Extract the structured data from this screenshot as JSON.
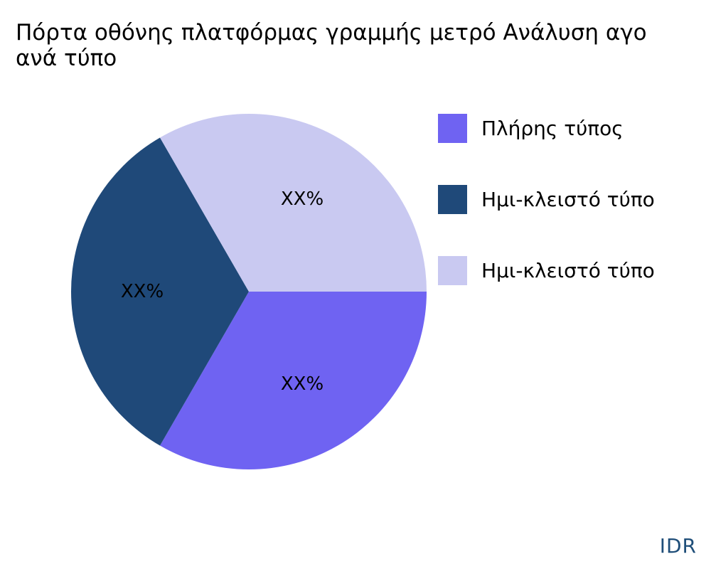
{
  "chart_data": {
    "type": "pie",
    "title_lines": [
      "Πόρτα οθόνης πλατφόρμας γραμμής μετρό Ανάλυση αγο",
      "ανά τύπο"
    ],
    "slices": [
      {
        "label": "Πλήρης τύπος",
        "value": 33.333,
        "display": "XX%",
        "color": "#6f63f2"
      },
      {
        "label": "Ημι-κλειστό τύπο",
        "value": 33.333,
        "display": "XX%",
        "color": "#1f4979"
      },
      {
        "label": "Ημι-κλειστό τύπο",
        "value": 33.333,
        "display": "XX%",
        "color": "#c9c9f1"
      }
    ],
    "start_angle_deg": 0,
    "direction": "clockwise",
    "legend_position": "right"
  },
  "brand": "IDR"
}
